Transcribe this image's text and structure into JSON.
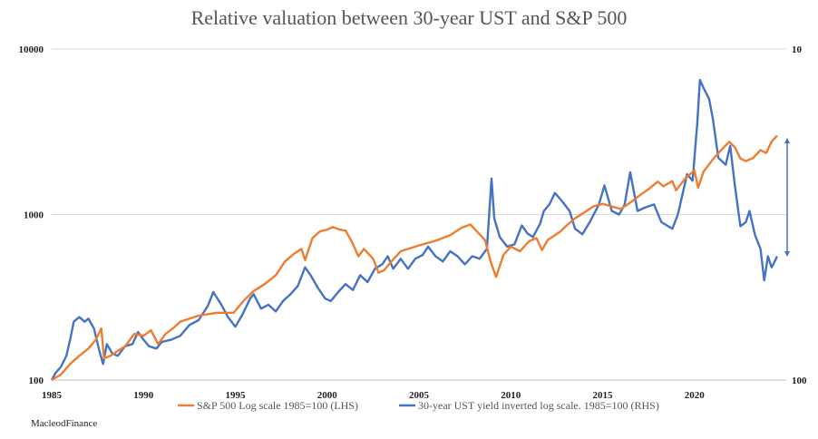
{
  "chart_data": {
    "type": "line",
    "title": "Relative valuation between 30-year UST and S&P 500",
    "source": "MacleodFinance",
    "x_ticks": [
      "1985",
      "1990",
      "1995",
      "2000",
      "2005",
      "2010",
      "2015",
      "2020"
    ],
    "y_left_ticks": [
      "100",
      "1000",
      "10000"
    ],
    "y_right_ticks": [
      "100",
      "10"
    ],
    "y_left_scale": "log",
    "y_right_scale": "log (inverted)",
    "ylim_left": [
      100,
      10000
    ],
    "xlim": [
      1985,
      2025
    ],
    "legend_position": "bottom",
    "colors": {
      "sp500": "#ED7D31",
      "ust": "#4472C4"
    },
    "series": [
      {
        "name": "S&P 500 Log scale 1985=100 (LHS)",
        "color": "#ED7D31",
        "points": [
          [
            1985.0,
            100
          ],
          [
            1985.5,
            108
          ],
          [
            1986.0,
            125
          ],
          [
            1986.5,
            140
          ],
          [
            1987.0,
            155
          ],
          [
            1987.4,
            175
          ],
          [
            1987.7,
            205
          ],
          [
            1987.85,
            135
          ],
          [
            1988.2,
            140
          ],
          [
            1988.6,
            150
          ],
          [
            1989.0,
            160
          ],
          [
            1989.5,
            190
          ],
          [
            1990.0,
            185
          ],
          [
            1990.4,
            200
          ],
          [
            1990.8,
            165
          ],
          [
            1991.2,
            190
          ],
          [
            1991.6,
            205
          ],
          [
            1992.0,
            225
          ],
          [
            1993.0,
            245
          ],
          [
            1994.0,
            255
          ],
          [
            1994.9,
            255
          ],
          [
            1995.5,
            305
          ],
          [
            1996.0,
            345
          ],
          [
            1996.6,
            380
          ],
          [
            1997.2,
            430
          ],
          [
            1997.7,
            520
          ],
          [
            1998.2,
            580
          ],
          [
            1998.6,
            620
          ],
          [
            1998.8,
            530
          ],
          [
            1999.2,
            720
          ],
          [
            1999.6,
            790
          ],
          [
            2000.0,
            810
          ],
          [
            2000.3,
            840
          ],
          [
            2000.7,
            810
          ],
          [
            2001.0,
            800
          ],
          [
            2001.3,
            700
          ],
          [
            2001.7,
            560
          ],
          [
            2002.0,
            620
          ],
          [
            2002.5,
            540
          ],
          [
            2002.8,
            445
          ],
          [
            2003.1,
            460
          ],
          [
            2003.5,
            520
          ],
          [
            2004.0,
            600
          ],
          [
            2005.0,
            650
          ],
          [
            2006.0,
            700
          ],
          [
            2006.7,
            750
          ],
          [
            2007.3,
            830
          ],
          [
            2007.8,
            870
          ],
          [
            2008.2,
            780
          ],
          [
            2008.6,
            700
          ],
          [
            2008.9,
            520
          ],
          [
            2009.2,
            420
          ],
          [
            2009.6,
            570
          ],
          [
            2010.0,
            640
          ],
          [
            2010.5,
            600
          ],
          [
            2011.0,
            690
          ],
          [
            2011.4,
            720
          ],
          [
            2011.7,
            610
          ],
          [
            2012.0,
            700
          ],
          [
            2012.7,
            790
          ],
          [
            2013.0,
            850
          ],
          [
            2013.5,
            950
          ],
          [
            2014.0,
            1030
          ],
          [
            2014.5,
            1120
          ],
          [
            2015.0,
            1160
          ],
          [
            2015.6,
            1110
          ],
          [
            2016.0,
            1080
          ],
          [
            2016.6,
            1200
          ],
          [
            2017.0,
            1300
          ],
          [
            2017.6,
            1450
          ],
          [
            2018.0,
            1580
          ],
          [
            2018.3,
            1480
          ],
          [
            2018.8,
            1590
          ],
          [
            2019.0,
            1400
          ],
          [
            2019.5,
            1650
          ],
          [
            2020.0,
            1850
          ],
          [
            2020.2,
            1450
          ],
          [
            2020.5,
            1820
          ],
          [
            2021.0,
            2150
          ],
          [
            2021.5,
            2480
          ],
          [
            2021.9,
            2750
          ],
          [
            2022.2,
            2550
          ],
          [
            2022.5,
            2180
          ],
          [
            2022.8,
            2100
          ],
          [
            2023.2,
            2200
          ],
          [
            2023.6,
            2450
          ],
          [
            2023.9,
            2350
          ],
          [
            2024.2,
            2750
          ],
          [
            2024.5,
            3000
          ]
        ]
      },
      {
        "name": "30-year UST yield inverted log scale. 1985=100 (RHS)",
        "color": "#4472C4",
        "points": [
          [
            1985.0,
            100
          ],
          [
            1985.2,
            110
          ],
          [
            1985.5,
            120
          ],
          [
            1985.8,
            140
          ],
          [
            1986.0,
            175
          ],
          [
            1986.2,
            225
          ],
          [
            1986.5,
            240
          ],
          [
            1986.8,
            225
          ],
          [
            1987.0,
            235
          ],
          [
            1987.3,
            205
          ],
          [
            1987.6,
            150
          ],
          [
            1987.8,
            125
          ],
          [
            1988.0,
            165
          ],
          [
            1988.3,
            145
          ],
          [
            1988.6,
            140
          ],
          [
            1989.0,
            160
          ],
          [
            1989.4,
            165
          ],
          [
            1989.7,
            195
          ],
          [
            1990.0,
            175
          ],
          [
            1990.3,
            160
          ],
          [
            1990.7,
            155
          ],
          [
            1991.0,
            170
          ],
          [
            1991.5,
            175
          ],
          [
            1992.0,
            185
          ],
          [
            1992.5,
            215
          ],
          [
            1993.0,
            230
          ],
          [
            1993.5,
            280
          ],
          [
            1993.8,
            340
          ],
          [
            1994.2,
            290
          ],
          [
            1994.6,
            240
          ],
          [
            1995.0,
            210
          ],
          [
            1995.4,
            250
          ],
          [
            1995.8,
            310
          ],
          [
            1996.0,
            330
          ],
          [
            1996.4,
            270
          ],
          [
            1996.8,
            285
          ],
          [
            1997.2,
            260
          ],
          [
            1997.6,
            300
          ],
          [
            1998.0,
            330
          ],
          [
            1998.4,
            370
          ],
          [
            1998.8,
            480
          ],
          [
            1999.1,
            430
          ],
          [
            1999.5,
            360
          ],
          [
            1999.9,
            310
          ],
          [
            2000.2,
            300
          ],
          [
            2000.6,
            340
          ],
          [
            2001.0,
            380
          ],
          [
            2001.4,
            350
          ],
          [
            2001.8,
            430
          ],
          [
            2002.2,
            390
          ],
          [
            2002.6,
            470
          ],
          [
            2003.0,
            500
          ],
          [
            2003.3,
            560
          ],
          [
            2003.6,
            470
          ],
          [
            2004.0,
            540
          ],
          [
            2004.4,
            470
          ],
          [
            2004.8,
            540
          ],
          [
            2005.2,
            570
          ],
          [
            2005.5,
            640
          ],
          [
            2005.9,
            560
          ],
          [
            2006.3,
            520
          ],
          [
            2006.7,
            600
          ],
          [
            2007.1,
            560
          ],
          [
            2007.5,
            500
          ],
          [
            2007.9,
            560
          ],
          [
            2008.3,
            540
          ],
          [
            2008.7,
            620
          ],
          [
            2008.95,
            1650
          ],
          [
            2009.1,
            950
          ],
          [
            2009.4,
            730
          ],
          [
            2009.8,
            640
          ],
          [
            2010.2,
            660
          ],
          [
            2010.6,
            860
          ],
          [
            2010.9,
            770
          ],
          [
            2011.2,
            730
          ],
          [
            2011.6,
            880
          ],
          [
            2011.8,
            1050
          ],
          [
            2012.1,
            1150
          ],
          [
            2012.4,
            1350
          ],
          [
            2012.8,
            1200
          ],
          [
            2013.2,
            1050
          ],
          [
            2013.5,
            820
          ],
          [
            2013.9,
            760
          ],
          [
            2014.3,
            900
          ],
          [
            2014.8,
            1150
          ],
          [
            2015.1,
            1500
          ],
          [
            2015.5,
            1050
          ],
          [
            2015.9,
            1000
          ],
          [
            2016.2,
            1150
          ],
          [
            2016.5,
            1800
          ],
          [
            2016.9,
            1050
          ],
          [
            2017.3,
            1100
          ],
          [
            2017.8,
            1150
          ],
          [
            2018.2,
            900
          ],
          [
            2018.8,
            820
          ],
          [
            2019.1,
            1000
          ],
          [
            2019.6,
            1750
          ],
          [
            2019.9,
            1600
          ],
          [
            2020.15,
            3500
          ],
          [
            2020.3,
            6500
          ],
          [
            2020.5,
            5800
          ],
          [
            2020.8,
            5000
          ],
          [
            2021.0,
            3800
          ],
          [
            2021.3,
            2200
          ],
          [
            2021.7,
            2000
          ],
          [
            2021.95,
            2600
          ],
          [
            2022.2,
            1500
          ],
          [
            2022.5,
            850
          ],
          [
            2022.8,
            900
          ],
          [
            2023.0,
            1050
          ],
          [
            2023.3,
            750
          ],
          [
            2023.6,
            620
          ],
          [
            2023.8,
            400
          ],
          [
            2024.0,
            560
          ],
          [
            2024.2,
            480
          ],
          [
            2024.3,
            500
          ],
          [
            2024.5,
            560
          ]
        ]
      }
    ]
  }
}
